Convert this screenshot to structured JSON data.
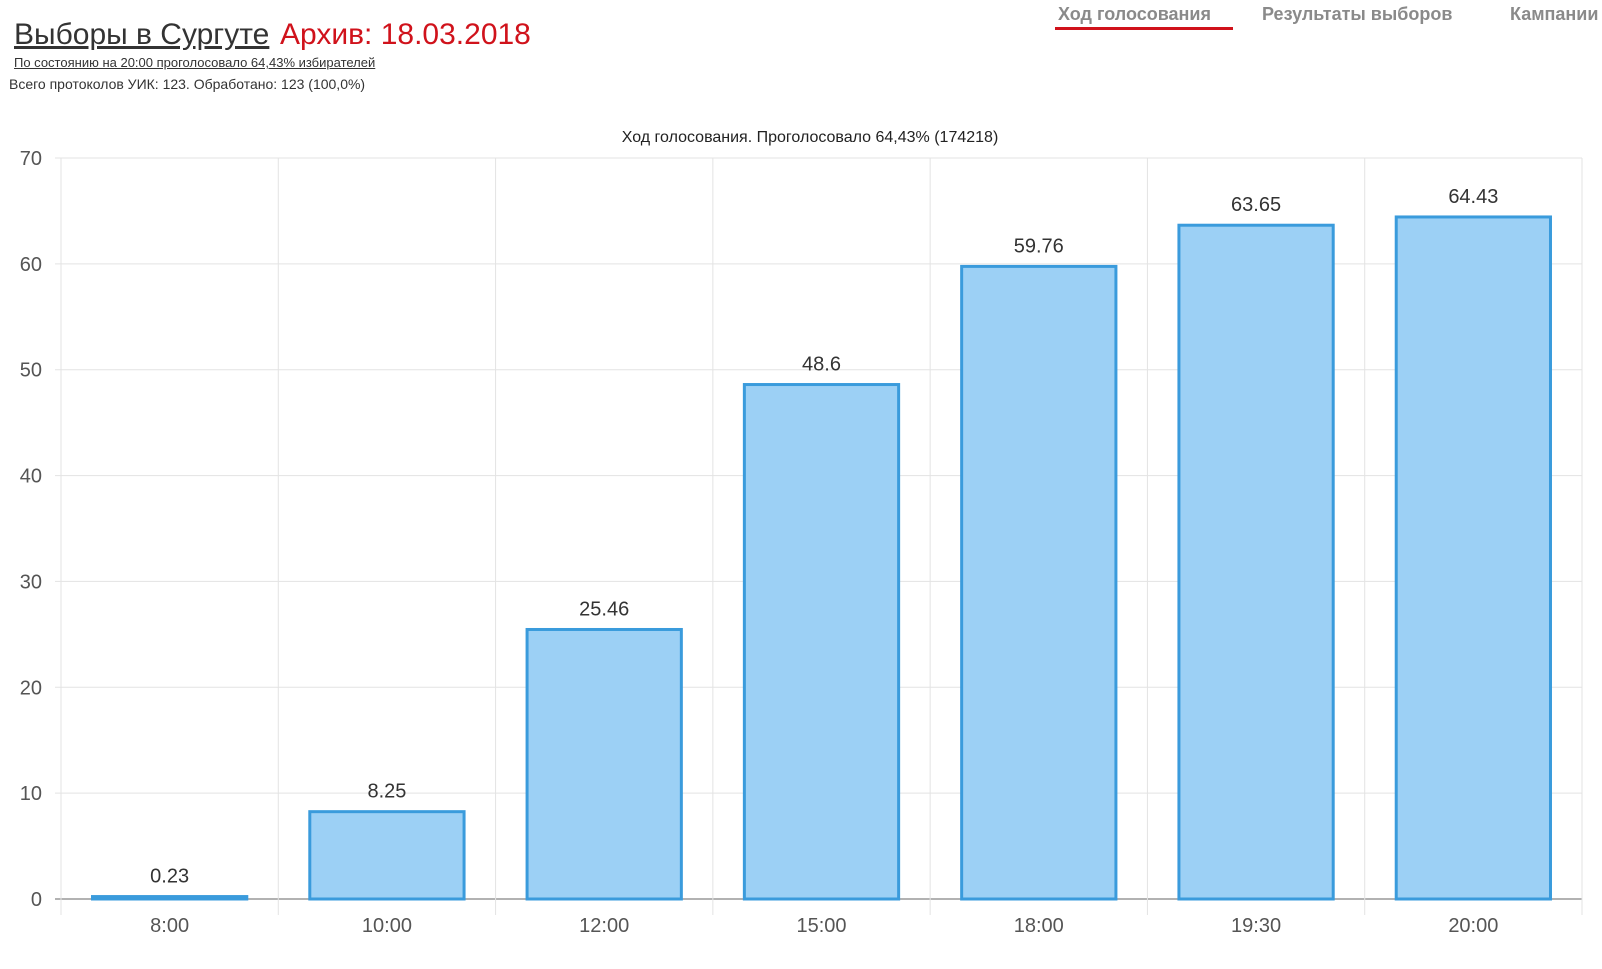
{
  "header": {
    "title": "Выборы в Сургуте",
    "archive": "Архив: 18.03.2018",
    "status": "По состоянию на 20:00 проголосовало 64,43% избирателей",
    "protocols": "Всего протоколов УИК: 123. Обработано: 123 (100,0%)"
  },
  "nav": {
    "tabs": [
      {
        "label": "Ход голосования",
        "active": true
      },
      {
        "label": "Результаты выборов",
        "active": false
      },
      {
        "label": "Кампании",
        "active": false
      }
    ]
  },
  "colors": {
    "accent": "#d0121b",
    "bar_fill": "#9cd0f5",
    "bar_stroke": "#3a9bdc"
  },
  "chart_data": {
    "type": "bar",
    "title": "Ход голосования. Проголосовало 64,43% (174218)",
    "xlabel": "",
    "ylabel": "",
    "categories": [
      "8:00",
      "10:00",
      "12:00",
      "15:00",
      "18:00",
      "19:30",
      "20:00"
    ],
    "values": [
      0.23,
      8.25,
      25.46,
      48.6,
      59.76,
      63.65,
      64.43
    ],
    "value_labels": [
      "0.23",
      "8.25",
      "25.46",
      "48.6",
      "59.76",
      "63.65",
      "64.43"
    ],
    "ylim": [
      0,
      70
    ],
    "yticks": [
      "0",
      "10",
      "20",
      "30",
      "40",
      "50",
      "60",
      "70"
    ],
    "grid": true,
    "legend": "none"
  }
}
